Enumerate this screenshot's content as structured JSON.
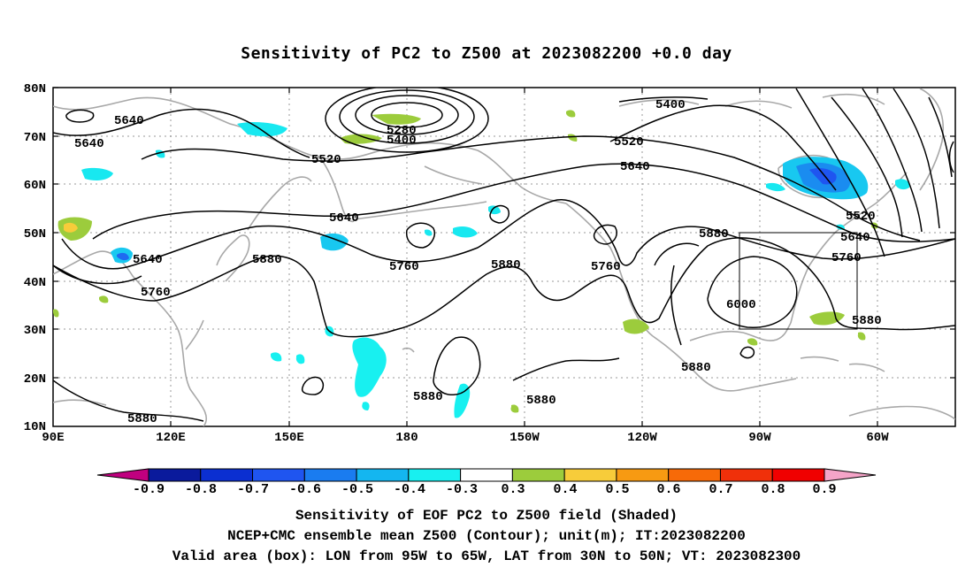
{
  "title": "Sensitivity of PC2 to Z500 at 2023082200 +0.0 day",
  "footer": {
    "line1": "Sensitivity of EOF PC2 to Z500 field (Shaded)",
    "line2": "NCEP+CMC ensemble mean Z500 (Contour); unit(m); IT:2023082200",
    "line3": "Valid area (box): LON from 95W to 65W, LAT from 30N to 50N; VT: 2023082300"
  },
  "map": {
    "lat_labels": [
      "80N",
      "70N",
      "60N",
      "50N",
      "40N",
      "30N",
      "20N",
      "10N"
    ],
    "lon_labels": [
      "90E",
      "120E",
      "150E",
      "180",
      "150W",
      "120W",
      "90W",
      "60W"
    ]
  },
  "contour_labels": [
    {
      "text": "5640"
    },
    {
      "text": "5640"
    },
    {
      "text": "5520"
    },
    {
      "text": "5640"
    },
    {
      "text": "5640"
    },
    {
      "text": "5760"
    },
    {
      "text": "5880"
    },
    {
      "text": "5760"
    },
    {
      "text": "5880"
    },
    {
      "text": "5760"
    },
    {
      "text": "5280"
    },
    {
      "text": "5400"
    },
    {
      "text": "5400"
    },
    {
      "text": "5520"
    },
    {
      "text": "5640"
    },
    {
      "text": "5880"
    },
    {
      "text": "6000"
    },
    {
      "text": "5520"
    },
    {
      "text": "5640"
    },
    {
      "text": "5760"
    },
    {
      "text": "5880"
    },
    {
      "text": "5880"
    },
    {
      "text": "5880"
    },
    {
      "text": "5880"
    },
    {
      "text": "5880"
    }
  ],
  "colorbar": {
    "labels": [
      "-0.9",
      "-0.8",
      "-0.7",
      "-0.6",
      "-0.5",
      "-0.4",
      "-0.3",
      "0.3",
      "0.4",
      "0.5",
      "0.6",
      "0.7",
      "0.8",
      "0.9"
    ],
    "colors": [
      "#c0007f",
      "#0a1a9c",
      "#0b2fd1",
      "#1f55f0",
      "#1a7cf0",
      "#14b6f0",
      "#18f0f0",
      "#ffffff",
      "#9ccc3c",
      "#f7cc3a",
      "#f79a12",
      "#f76a08",
      "#f0300a",
      "#f00000",
      "#f5a4c8"
    ]
  },
  "valid_box": {
    "lon_min": "95W",
    "lon_max": "65W",
    "lat_min": "30N",
    "lat_max": "50N"
  }
}
